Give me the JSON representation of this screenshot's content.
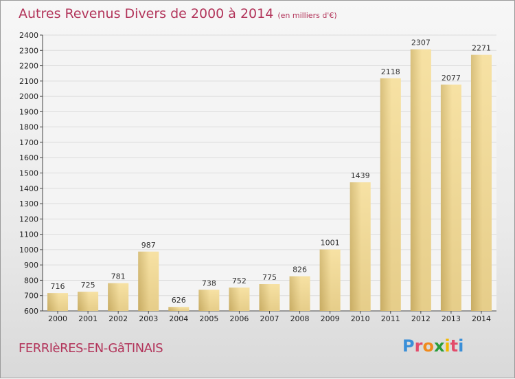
{
  "header": {
    "title": "Autres Revenus Divers de 2000 à 2014",
    "unit": "(en milliers d'€)"
  },
  "footer": {
    "city": "FERRIèRES-EN-GâTINAIS",
    "brand": {
      "letters": [
        "P",
        "r",
        "o",
        "x",
        "i",
        "t",
        "i"
      ],
      "colors": [
        "#3a8fd8",
        "#e34b6a",
        "#f08a1c",
        "#2b9c3a",
        "#f3b800",
        "#e34b6a",
        "#3a8fd8"
      ]
    }
  },
  "colors": {
    "bar_light": "#f6df9e",
    "bar_dark": "#c8ac63",
    "title": "#b2345a"
  },
  "chart_data": {
    "type": "bar",
    "categories": [
      "2000",
      "2001",
      "2002",
      "2003",
      "2004",
      "2005",
      "2006",
      "2007",
      "2008",
      "2009",
      "2010",
      "2011",
      "2012",
      "2013",
      "2014"
    ],
    "values": [
      716,
      725,
      781,
      987,
      626,
      738,
      752,
      775,
      826,
      1001,
      1439,
      2118,
      2307,
      2077,
      2271
    ],
    "ylim": [
      600,
      2400
    ],
    "yticks": [
      600,
      700,
      800,
      900,
      1000,
      1100,
      1200,
      1300,
      1400,
      1500,
      1600,
      1700,
      1800,
      1900,
      2000,
      2100,
      2200,
      2300,
      2400
    ],
    "grid": true,
    "title": "Autres Revenus Divers de 2000 à 2014",
    "xlabel": "",
    "ylabel": ""
  }
}
